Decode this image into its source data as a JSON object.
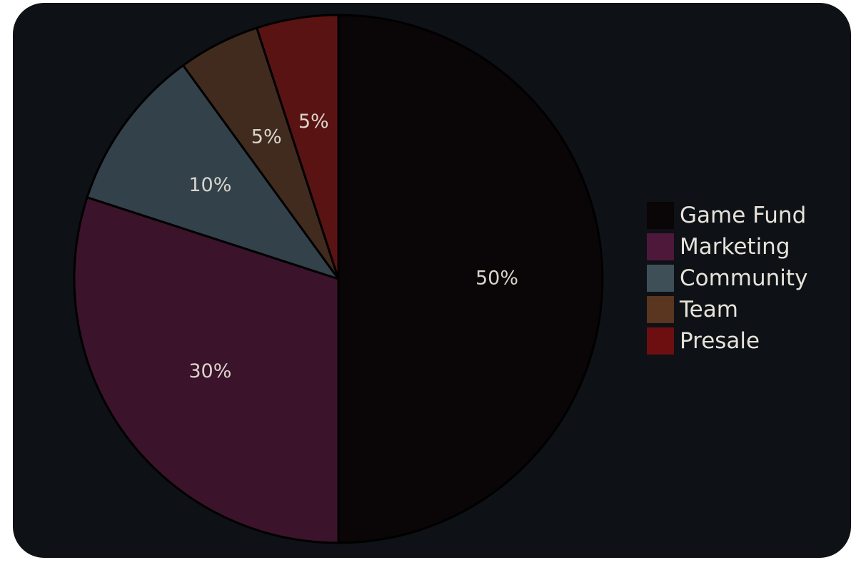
{
  "chart_data": {
    "type": "pie",
    "title": "",
    "start_angle_deg": 90,
    "direction": "clockwise",
    "slices": [
      {
        "label": "Game Fund",
        "value": 50,
        "display": "50%",
        "color": "#0a0506"
      },
      {
        "label": "Marketing",
        "value": 30,
        "display": "30%",
        "color": "#3b132b"
      },
      {
        "label": "Community",
        "value": 10,
        "display": "10%",
        "color": "#33414a"
      },
      {
        "label": "Team",
        "value": 5,
        "display": "5%",
        "color": "#412b1e"
      },
      {
        "label": "Presale",
        "value": 5,
        "display": "5%",
        "color": "#5a1313"
      }
    ],
    "legend": {
      "placement": "right",
      "entries": [
        {
          "label": "Game Fund",
          "color": "#0a0506"
        },
        {
          "label": "Marketing",
          "color": "#4e183b"
        },
        {
          "label": "Community",
          "color": "#3e4f58"
        },
        {
          "label": "Team",
          "color": "#5a3520"
        },
        {
          "label": "Presale",
          "color": "#6d0f10"
        }
      ]
    }
  },
  "theme": {
    "card_background": "#0e1115",
    "label_color": "#d9d4cc",
    "legend_text_color": "#e6e2da",
    "slice_border_color": "#000000"
  }
}
